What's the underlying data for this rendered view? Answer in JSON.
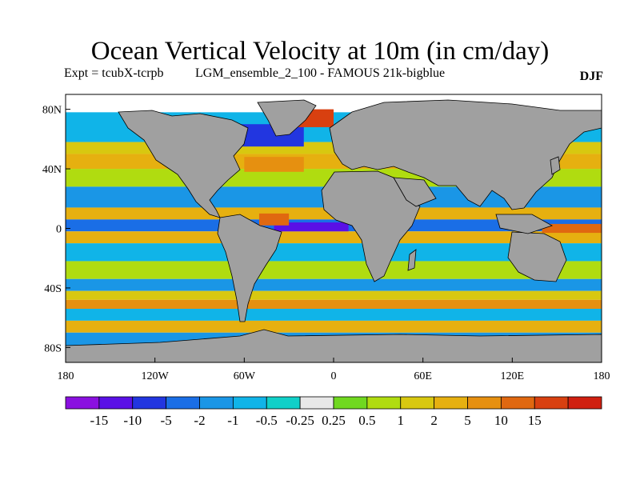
{
  "header": {
    "title": "Ocean Vertical Velocity at 10m (in cm/day)",
    "expt": "Expt = tcubX-tcrpb",
    "run": "LGM_ensemble_2_100 - FAMOUS 21k-bigblue",
    "season": "DJF"
  },
  "map": {
    "projection": "cylindrical-equidistant",
    "lon_range": [
      -180,
      180
    ],
    "lat_range": [
      -90,
      90
    ],
    "land_color": "#a0a0a0",
    "lat_ticks": [
      {
        "value": 80,
        "label": "80N"
      },
      {
        "value": 40,
        "label": "40N"
      },
      {
        "value": 0,
        "label": "0"
      },
      {
        "value": -40,
        "label": "40S"
      },
      {
        "value": -80,
        "label": "80S"
      }
    ],
    "lon_ticks": [
      {
        "value": -180,
        "label": "180"
      },
      {
        "value": -120,
        "label": "120W"
      },
      {
        "value": -60,
        "label": "60W"
      },
      {
        "value": 0,
        "label": "0"
      },
      {
        "value": 60,
        "label": "60E"
      },
      {
        "value": 120,
        "label": "120E"
      },
      {
        "value": 180,
        "label": "180"
      }
    ]
  },
  "colorbar": {
    "colors": [
      "#8a10e0",
      "#5a10e6",
      "#2236e0",
      "#1a6ee6",
      "#1a96e6",
      "#10b4e8",
      "#10d0c8",
      "#e8e8e8",
      "#70d820",
      "#b0dc10",
      "#d8c810",
      "#e6b010",
      "#e69010",
      "#e06810",
      "#d84010",
      "#d02010"
    ],
    "labels": [
      "-15",
      "-10",
      "-5",
      "-2",
      "-1",
      "-0.5",
      "-0.25",
      "0.25",
      "0.5",
      "1",
      "2",
      "5",
      "10",
      "15"
    ]
  },
  "chart_data": {
    "type": "heatmap",
    "title": "Ocean Vertical Velocity at 10m (in cm/day)",
    "levels": [
      -15,
      -10,
      -5,
      -2,
      -1,
      -0.5,
      -0.25,
      0.25,
      0.5,
      1,
      2,
      5,
      10,
      15
    ],
    "fields": [
      {
        "lon": [
          -180,
          180
        ],
        "lat": [
          58,
          78
        ],
        "level": 5
      },
      {
        "lon": [
          -180,
          180
        ],
        "lat": [
          50,
          58
        ],
        "level": 10
      },
      {
        "lon": [
          -180,
          180
        ],
        "lat": [
          40,
          50
        ],
        "level": 11
      },
      {
        "lon": [
          -180,
          180
        ],
        "lat": [
          28,
          40
        ],
        "level": 9
      },
      {
        "lon": [
          -180,
          180
        ],
        "lat": [
          14,
          28
        ],
        "level": 4
      },
      {
        "lon": [
          -180,
          180
        ],
        "lat": [
          6,
          14
        ],
        "level": 11
      },
      {
        "lon": [
          -180,
          180
        ],
        "lat": [
          -2,
          6
        ],
        "level": 3
      },
      {
        "lon": [
          -180,
          180
        ],
        "lat": [
          -10,
          -2
        ],
        "level": 11
      },
      {
        "lon": [
          -180,
          180
        ],
        "lat": [
          -22,
          -10
        ],
        "level": 5
      },
      {
        "lon": [
          -180,
          180
        ],
        "lat": [
          -34,
          -22
        ],
        "level": 9
      },
      {
        "lon": [
          -180,
          180
        ],
        "lat": [
          -42,
          -34
        ],
        "level": 4
      },
      {
        "lon": [
          -180,
          180
        ],
        "lat": [
          -48,
          -42
        ],
        "level": 10
      },
      {
        "lon": [
          -180,
          180
        ],
        "lat": [
          -54,
          -48
        ],
        "level": 12
      },
      {
        "lon": [
          -180,
          180
        ],
        "lat": [
          -62,
          -54
        ],
        "level": 5
      },
      {
        "lon": [
          -180,
          180
        ],
        "lat": [
          -70,
          -62
        ],
        "level": 11
      },
      {
        "lon": [
          -180,
          180
        ],
        "lat": [
          -90,
          -70
        ],
        "level": 4
      },
      {
        "lon": [
          -40,
          10
        ],
        "lat": [
          -2,
          4
        ],
        "level": 1
      },
      {
        "lon": [
          -70,
          -20
        ],
        "lat": [
          55,
          70
        ],
        "level": 2
      },
      {
        "lon": [
          -60,
          -20
        ],
        "lat": [
          38,
          48
        ],
        "level": 12
      },
      {
        "lon": [
          -30,
          0
        ],
        "lat": [
          68,
          80
        ],
        "level": 14
      },
      {
        "lon": [
          -50,
          -30
        ],
        "lat": [
          2,
          10
        ],
        "level": 13
      },
      {
        "lon": [
          140,
          180
        ],
        "lat": [
          -3,
          3
        ],
        "level": 13
      }
    ]
  }
}
